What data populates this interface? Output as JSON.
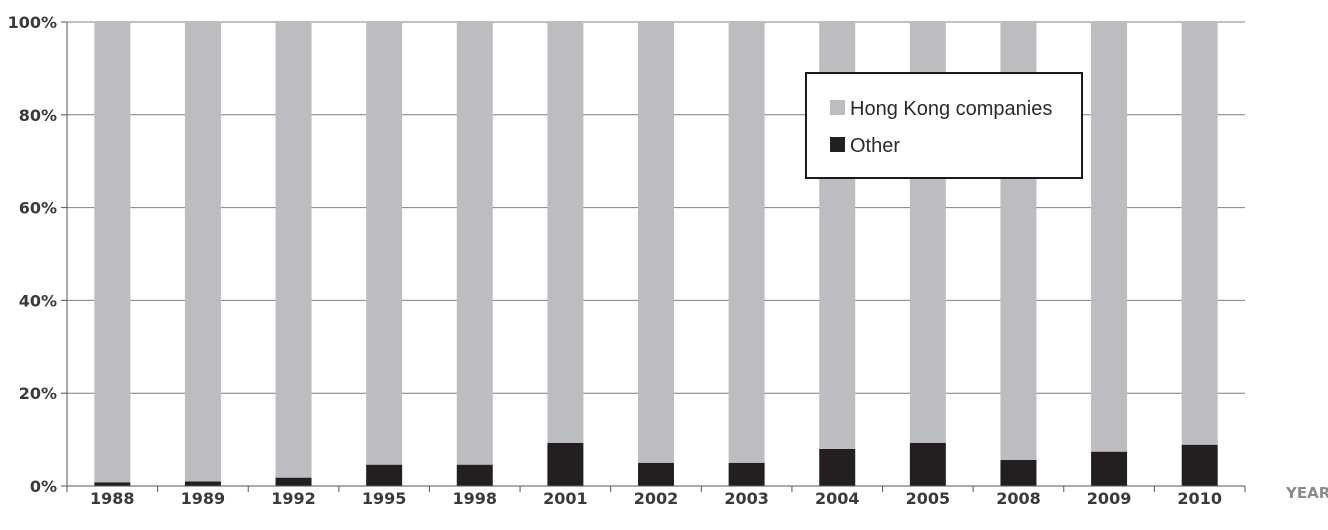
{
  "chart_data": {
    "type": "bar",
    "stacked": true,
    "percent": true,
    "xlabel": "YEAR",
    "ylabel": "",
    "ylim": [
      0,
      100
    ],
    "yticks": [
      0,
      20,
      40,
      60,
      80,
      100
    ],
    "ytick_labels": [
      "0%",
      "20%",
      "40%",
      "60%",
      "80%",
      "100%"
    ],
    "categories": [
      "1988",
      "1989",
      "1992",
      "1995",
      "1998",
      "2001",
      "2002",
      "2003",
      "2004",
      "2005",
      "2008",
      "2009",
      "2010"
    ],
    "series": [
      {
        "name": "Other",
        "color": "#231f20",
        "values": [
          0.8,
          1.0,
          1.8,
          4.6,
          4.6,
          9.3,
          5.0,
          5.0,
          8.0,
          9.3,
          5.6,
          7.4,
          8.9
        ]
      },
      {
        "name": "Hong Kong companies",
        "color": "#bcbdc0",
        "values": [
          99.2,
          99.0,
          98.2,
          95.4,
          95.4,
          90.7,
          95.0,
          95.0,
          92.0,
          90.7,
          94.4,
          92.6,
          91.1
        ]
      }
    ],
    "legend": {
      "position": "top-right",
      "order": [
        "Hong Kong companies",
        "Other"
      ]
    },
    "grid": true,
    "gridline_color": "#7f7f7f"
  }
}
